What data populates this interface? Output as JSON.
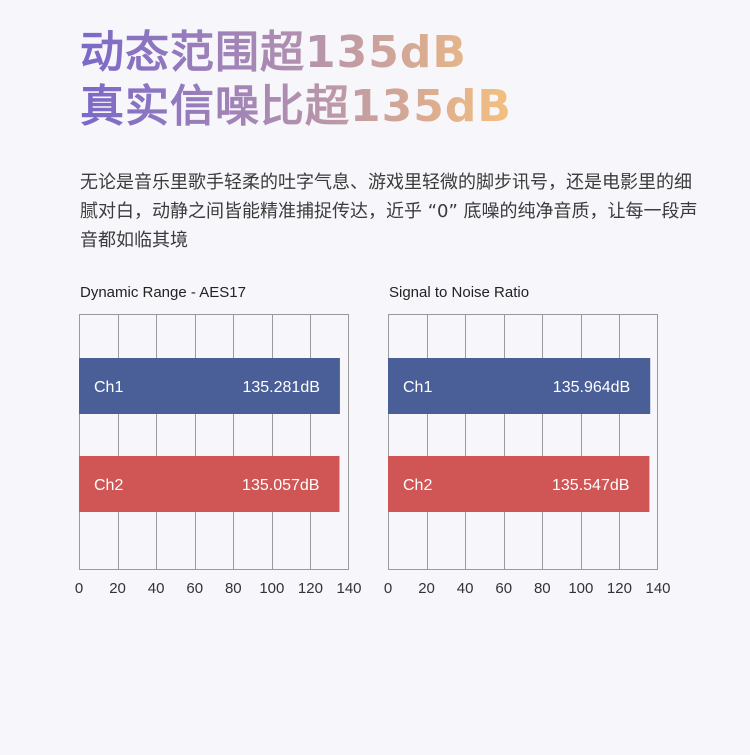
{
  "headline": {
    "line1": "动态范围超135dB",
    "line2": "真实信噪比超135dB"
  },
  "intro": "无论是音乐里歌手轻柔的吐字气息、游戏里轻微的脚步讯号，还是电影里的细腻对白，动静之间皆能精准捕捉传达，近乎 “0” 底噪的纯净音质，让每一段声音都如临其境",
  "colors": {
    "ch1": "#4a5f97",
    "ch2": "#cf5655",
    "grid": "#9a9a9a"
  },
  "chart_data": [
    {
      "type": "bar",
      "orientation": "horizontal",
      "title": "Dynamic Range - AES17",
      "categories": [
        "Ch1",
        "Ch2"
      ],
      "values": [
        135.281,
        135.057
      ],
      "value_labels": [
        "135.281dB",
        "135.057dB"
      ],
      "xlim": [
        0,
        140
      ],
      "xticks": [
        0,
        20,
        40,
        60,
        80,
        100,
        120,
        140
      ],
      "grid": true
    },
    {
      "type": "bar",
      "orientation": "horizontal",
      "title": "Signal to Noise Ratio",
      "categories": [
        "Ch1",
        "Ch2"
      ],
      "values": [
        135.964,
        135.547
      ],
      "value_labels": [
        "135.964dB",
        "135.547dB"
      ],
      "xlim": [
        0,
        140
      ],
      "xticks": [
        0,
        20,
        40,
        60,
        80,
        100,
        120,
        140
      ],
      "grid": true
    }
  ]
}
